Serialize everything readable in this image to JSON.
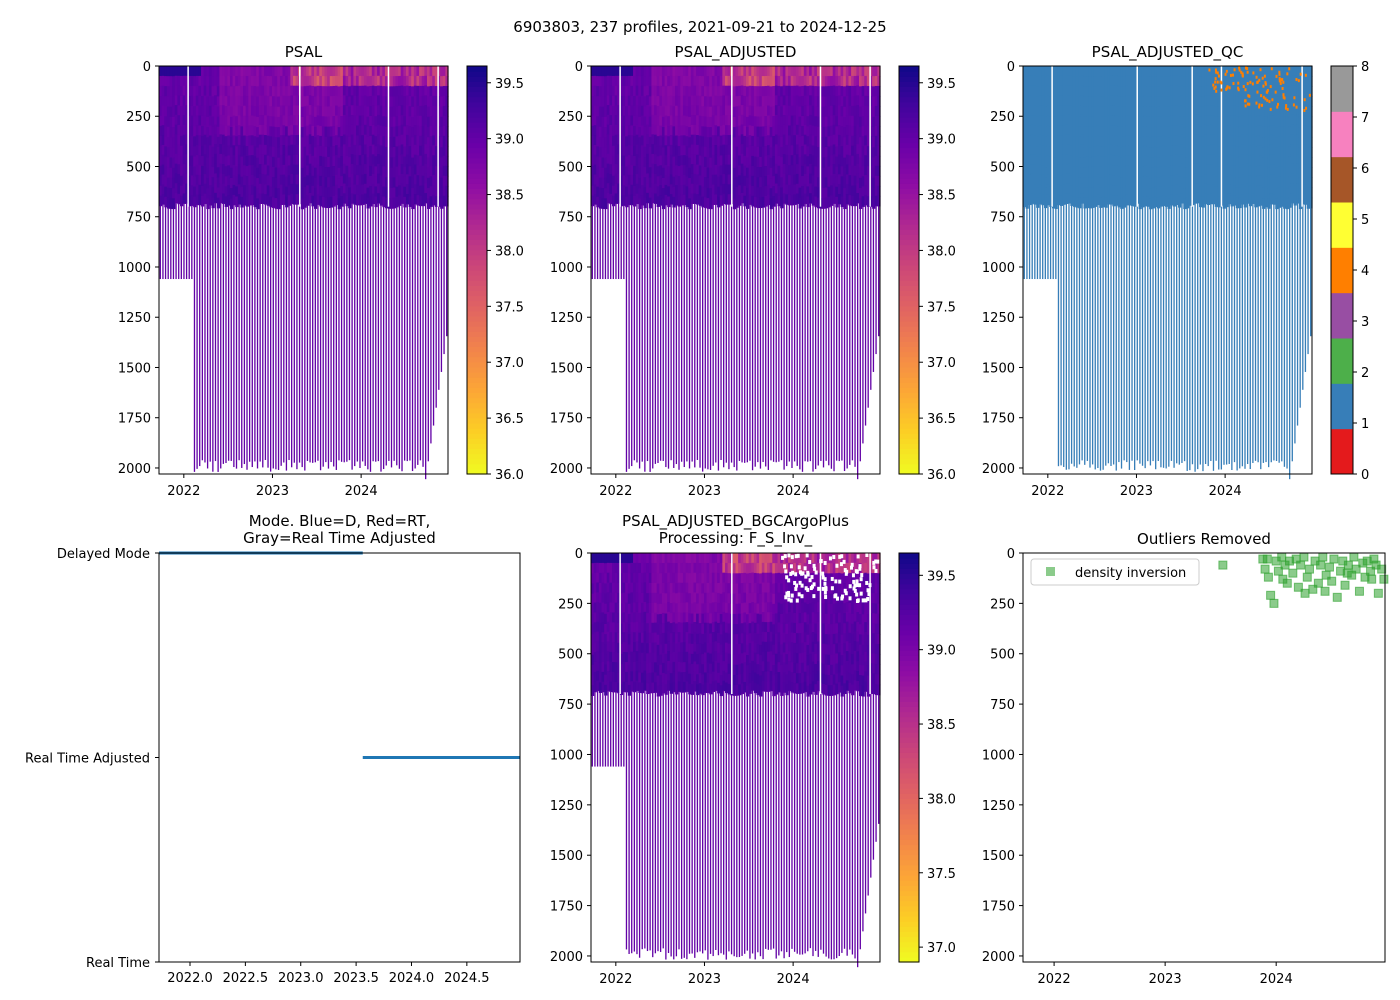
{
  "suptitle": "6903803, 237 profiles, 2021-09-21 to 2024-12-25",
  "colors": {
    "plasma": [
      "#0d0887",
      "#41049d",
      "#6a00a8",
      "#8f0da4",
      "#b12a90",
      "#cc4778",
      "#e16462",
      "#f2844b",
      "#fca636",
      "#fcce25",
      "#f0f921"
    ],
    "qc": [
      "#e41a1c",
      "#377eb8",
      "#4daf4a",
      "#984ea3",
      "#ff7f00",
      "#ffff33",
      "#a65628",
      "#f781bf",
      "#999999"
    ],
    "mode_line": "#1f77b4",
    "outlier": "#2ca02c"
  },
  "chart_data": [
    {
      "id": "psal",
      "type": "heatmap",
      "title": "PSAL",
      "xlim": [
        2021.72,
        2024.98
      ],
      "ylim": [
        2030,
        0
      ],
      "xticks": [
        2022,
        2023,
        2024
      ],
      "xtick_labels": [
        "2022",
        "2023",
        "2024"
      ],
      "yticks": [
        0,
        250,
        500,
        750,
        1000,
        1250,
        1500,
        1750,
        2000
      ],
      "ytick_labels": [
        "0",
        "250",
        "500",
        "750",
        "1000",
        "1250",
        "1500",
        "1750",
        "2000"
      ],
      "colorbar": {
        "range": [
          36.0,
          39.65
        ],
        "ticks": [
          "36.0",
          "36.5",
          "37.0",
          "37.5",
          "38.0",
          "38.5",
          "39.0",
          "39.5"
        ],
        "tick_values": [
          36.0,
          36.5,
          37.0,
          37.5,
          38.0,
          38.5,
          39.0,
          39.5
        ]
      }
    },
    {
      "id": "psal_adj",
      "type": "heatmap",
      "title": "PSAL_ADJUSTED",
      "xlim": [
        2021.72,
        2024.98
      ],
      "ylim": [
        2030,
        0
      ],
      "xticks": [
        2022,
        2023,
        2024
      ],
      "xtick_labels": [
        "2022",
        "2023",
        "2024"
      ],
      "yticks": [
        0,
        250,
        500,
        750,
        1000,
        1250,
        1500,
        1750,
        2000
      ],
      "ytick_labels": [
        "0",
        "250",
        "500",
        "750",
        "1000",
        "1250",
        "1500",
        "1750",
        "2000"
      ],
      "colorbar": {
        "range": [
          36.0,
          39.65
        ],
        "ticks": [
          "36.0",
          "36.5",
          "37.0",
          "37.5",
          "38.0",
          "38.5",
          "39.0",
          "39.5"
        ],
        "tick_values": [
          36.0,
          36.5,
          37.0,
          37.5,
          38.0,
          38.5,
          39.0,
          39.5
        ]
      }
    },
    {
      "id": "psal_qc",
      "type": "heatmap",
      "title": "PSAL_ADJUSTED_QC",
      "xlim": [
        2021.72,
        2024.98
      ],
      "ylim": [
        2030,
        0
      ],
      "xticks": [
        2022,
        2023,
        2024
      ],
      "xtick_labels": [
        "2022",
        "2023",
        "2024"
      ],
      "yticks": [
        0,
        250,
        500,
        750,
        1000,
        1250,
        1500,
        1750,
        2000
      ],
      "ytick_labels": [
        "0",
        "250",
        "500",
        "750",
        "1000",
        "1250",
        "1500",
        "1750",
        "2000"
      ],
      "colorbar": {
        "range": [
          0,
          8
        ],
        "ticks": [
          "0",
          "1",
          "2",
          "3",
          "4",
          "5",
          "6",
          "7",
          "8"
        ],
        "tick_values": [
          0,
          1,
          2,
          3,
          4,
          5,
          6,
          7,
          8
        ]
      }
    },
    {
      "id": "mode",
      "type": "line",
      "title": "Mode. Blue=D, Red=RT,",
      "title2": "Gray=Real Time Adjusted",
      "xlim": [
        2021.72,
        2024.98
      ],
      "ylim": [
        0,
        2
      ],
      "xticks": [
        2022.0,
        2022.5,
        2023.0,
        2023.5,
        2024.0,
        2024.5
      ],
      "xtick_labels": [
        "2022.0",
        "2022.5",
        "2023.0",
        "2023.5",
        "2024.0",
        "2024.5"
      ],
      "yticks": [
        0,
        1,
        2
      ],
      "ytick_labels": [
        "Real Time",
        "Real Time Adjusted",
        "Delayed Mode"
      ],
      "series": [
        {
          "name": "Delayed Mode",
          "x": [
            2021.72,
            2023.56
          ],
          "y": [
            2,
            2
          ]
        },
        {
          "name": "Real Time Adjusted",
          "x": [
            2023.56,
            2024.98
          ],
          "y": [
            1,
            1
          ]
        }
      ]
    },
    {
      "id": "bgc",
      "type": "heatmap",
      "title": "PSAL_ADJUSTED_BGCArgoPlus",
      "title2": "Processing: F_S_Inv_",
      "xlim": [
        2021.72,
        2024.98
      ],
      "ylim": [
        2030,
        0
      ],
      "xticks": [
        2022,
        2023,
        2024
      ],
      "xtick_labels": [
        "2022",
        "2023",
        "2024"
      ],
      "yticks": [
        0,
        250,
        500,
        750,
        1000,
        1250,
        1500,
        1750,
        2000
      ],
      "ytick_labels": [
        "0",
        "250",
        "500",
        "750",
        "1000",
        "1250",
        "1500",
        "1750",
        "2000"
      ],
      "colorbar": {
        "range": [
          36.9,
          39.65
        ],
        "ticks": [
          "37.0",
          "37.5",
          "38.0",
          "38.5",
          "39.0",
          "39.5"
        ],
        "tick_values": [
          37.0,
          37.5,
          38.0,
          38.5,
          39.0,
          39.5
        ]
      }
    },
    {
      "id": "outliers",
      "type": "scatter",
      "title": "Outliers Removed",
      "legend": "density inversion",
      "legend_position": "upper-left",
      "xlim": [
        2021.72,
        2024.98
      ],
      "ylim": [
        2030,
        0
      ],
      "xticks": [
        2022,
        2023,
        2024
      ],
      "xtick_labels": [
        "2022",
        "2023",
        "2024"
      ],
      "yticks": [
        0,
        250,
        500,
        750,
        1000,
        1250,
        1500,
        1750,
        2000
      ],
      "ytick_labels": [
        "0",
        "250",
        "500",
        "750",
        "1000",
        "1250",
        "1500",
        "1750",
        "2000"
      ],
      "points": [
        [
          2023.52,
          60
        ],
        [
          2023.88,
          30
        ],
        [
          2023.9,
          80
        ],
        [
          2023.93,
          120
        ],
        [
          2023.95,
          210
        ],
        [
          2023.98,
          250
        ],
        [
          2024.0,
          40
        ],
        [
          2024.02,
          90
        ],
        [
          2024.05,
          20
        ],
        [
          2024.08,
          60
        ],
        [
          2024.1,
          150
        ],
        [
          2024.12,
          40
        ],
        [
          2024.15,
          100
        ],
        [
          2024.18,
          30
        ],
        [
          2024.2,
          170
        ],
        [
          2024.22,
          60
        ],
        [
          2024.25,
          20
        ],
        [
          2024.28,
          120
        ],
        [
          2024.3,
          80
        ],
        [
          2024.33,
          180
        ],
        [
          2024.35,
          40
        ],
        [
          2024.38,
          150
        ],
        [
          2024.4,
          60
        ],
        [
          2024.42,
          20
        ],
        [
          2024.45,
          110
        ],
        [
          2024.48,
          70
        ],
        [
          2024.5,
          140
        ],
        [
          2024.52,
          30
        ],
        [
          2024.55,
          220
        ],
        [
          2024.58,
          90
        ],
        [
          2024.6,
          40
        ],
        [
          2024.62,
          160
        ],
        [
          2024.65,
          60
        ],
        [
          2024.68,
          110
        ],
        [
          2024.7,
          20
        ],
        [
          2024.72,
          80
        ],
        [
          2024.75,
          190
        ],
        [
          2024.78,
          50
        ],
        [
          2024.8,
          120
        ],
        [
          2024.82,
          40
        ],
        [
          2024.85,
          90
        ],
        [
          2024.88,
          30
        ],
        [
          2024.9,
          60
        ],
        [
          2024.92,
          200
        ],
        [
          2024.95,
          80
        ],
        [
          2024.97,
          130
        ],
        [
          2023.92,
          30
        ],
        [
          2024.06,
          130
        ],
        [
          2024.26,
          200
        ],
        [
          2024.44,
          190
        ],
        [
          2024.64,
          100
        ],
        [
          2024.86,
          130
        ]
      ]
    }
  ]
}
